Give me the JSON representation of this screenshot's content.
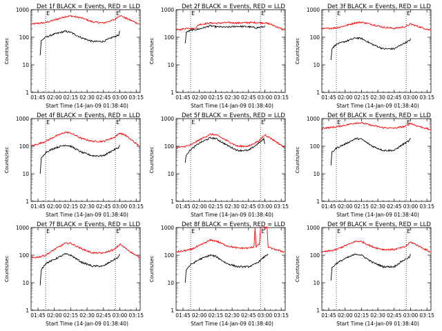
{
  "figure": {
    "start_time_label": "Start Time (14-Jan-09 01:38:40)",
    "ylabel": "Counts/sec",
    "x_ticks": [
      "01:45",
      "02:00",
      "02:15",
      "02:30",
      "02:45",
      "03:00",
      "03:15"
    ],
    "y_ticks": [
      "1",
      "10",
      "100",
      "1000"
    ],
    "marker_letters": [
      "E",
      "E"
    ],
    "colors": {
      "events": "#000000",
      "lld": "#ff0000",
      "axes": "#000000"
    }
  },
  "chart_data": [
    {
      "type": "line",
      "title": "Det 1f BLACK = Events, RED = LLD",
      "xlabel": "Start Time (14-Jan-09 01:38:40)",
      "ylabel": "Counts/sec",
      "xlim": [
        "01:38:40",
        "03:18:40"
      ],
      "ylim": [
        1,
        1000
      ],
      "yscale": "log",
      "marker_times": [
        "01:52",
        "02:56"
      ],
      "series": [
        {
          "name": "LLD",
          "color": "#ff0000",
          "x": [
            "01:38:40",
            "01:45",
            "01:52",
            "02:00",
            "02:10",
            "02:15",
            "02:25",
            "02:35",
            "02:45",
            "02:55",
            "03:00",
            "03:05",
            "03:18"
          ],
          "y": [
            300,
            320,
            340,
            420,
            560,
            590,
            500,
            360,
            330,
            430,
            620,
            500,
            300
          ]
        },
        {
          "name": "Events",
          "color": "#000000",
          "x": [
            "01:47",
            "01:48",
            "01:52",
            "02:00",
            "02:10",
            "02:15",
            "02:25",
            "02:35",
            "02:45",
            "02:52",
            "02:59",
            "03:00"
          ],
          "y": [
            22,
            75,
            100,
            130,
            165,
            150,
            95,
            70,
            70,
            95,
            120,
            170
          ]
        }
      ]
    },
    {
      "type": "line",
      "title": "Det 2f BLACK = Events, RED = LLD",
      "xlabel": "Start Time (14-Jan-09 01:38:40)",
      "ylabel": "Counts/sec",
      "xlim": [
        "01:38:40",
        "03:18:40"
      ],
      "ylim": [
        1,
        1000
      ],
      "yscale": "log",
      "marker_times": [
        "01:52",
        "02:56"
      ],
      "series": [
        {
          "name": "LLD",
          "color": "#ff0000",
          "x": [
            "01:38:40",
            "01:45",
            "01:50",
            "01:55",
            "02:00",
            "02:10",
            "02:15",
            "02:25",
            "02:35",
            "02:45",
            "02:55",
            "03:00",
            "03:05",
            "03:18"
          ],
          "y": [
            180,
            200,
            220,
            200,
            290,
            330,
            320,
            340,
            330,
            340,
            340,
            330,
            300,
            180
          ]
        },
        {
          "name": "Events",
          "color": "#000000",
          "x": [
            "01:47",
            "01:48",
            "01:52",
            "02:00",
            "02:10",
            "02:15",
            "02:25",
            "02:35",
            "02:45",
            "02:52",
            "02:59",
            "03:00"
          ],
          "y": [
            60,
            150,
            180,
            200,
            260,
            240,
            230,
            250,
            240,
            220,
            240,
            260
          ]
        }
      ]
    },
    {
      "type": "line",
      "title": "Det 3f BLACK = Events, RED = LLD",
      "xlabel": "Start Time (14-Jan-09 01:38:40)",
      "ylabel": "Counts/sec",
      "xlim": [
        "01:38:40",
        "03:18:40"
      ],
      "ylim": [
        1,
        1000
      ],
      "yscale": "log",
      "marker_times": [
        "01:52",
        "02:56"
      ],
      "series": [
        {
          "name": "LLD",
          "color": "#ff0000",
          "x": [
            "01:38:40",
            "01:45",
            "01:52",
            "02:00",
            "02:10",
            "02:15",
            "02:25",
            "02:35",
            "02:45",
            "02:55",
            "03:00",
            "03:05",
            "03:18"
          ],
          "y": [
            200,
            210,
            220,
            260,
            340,
            350,
            290,
            230,
            210,
            240,
            300,
            260,
            180
          ]
        },
        {
          "name": "Events",
          "color": "#000000",
          "x": [
            "01:47",
            "01:48",
            "01:52",
            "02:00",
            "02:10",
            "02:15",
            "02:25",
            "02:35",
            "02:45",
            "02:52",
            "02:59",
            "03:00"
          ],
          "y": [
            15,
            40,
            55,
            70,
            95,
            90,
            55,
            38,
            38,
            55,
            75,
            90
          ]
        }
      ]
    },
    {
      "type": "line",
      "title": "Det 4f BLACK = Events, RED = LLD",
      "xlabel": "Start Time (14-Jan-09 01:38:40)",
      "ylabel": "Counts/sec",
      "xlim": [
        "01:38:40",
        "03:18:40"
      ],
      "ylim": [
        1,
        1000
      ],
      "yscale": "log",
      "marker_times": [
        "01:52",
        "02:56"
      ],
      "series": [
        {
          "name": "LLD",
          "color": "#ff0000",
          "x": [
            "01:38:40",
            "01:45",
            "01:52",
            "02:00",
            "02:10",
            "02:15",
            "02:25",
            "02:35",
            "02:45",
            "02:55",
            "03:00",
            "03:05",
            "03:18"
          ],
          "y": [
            100,
            120,
            150,
            220,
            320,
            300,
            190,
            150,
            150,
            210,
            300,
            250,
            100
          ]
        },
        {
          "name": "Events",
          "color": "#000000",
          "x": [
            "01:47",
            "01:48",
            "01:52",
            "02:00",
            "02:10",
            "02:15",
            "02:25",
            "02:35",
            "02:45",
            "02:52",
            "02:59",
            "03:00"
          ],
          "y": [
            10,
            35,
            60,
            85,
            110,
            100,
            60,
            45,
            45,
            65,
            90,
            110
          ]
        }
      ]
    },
    {
      "type": "line",
      "title": "Det 5f BLACK = Events, RED = LLD",
      "xlabel": "Start Time (14-Jan-09 01:38:40)",
      "ylabel": "Counts/sec",
      "xlim": [
        "01:38:40",
        "03:18:40"
      ],
      "ylim": [
        1,
        1000
      ],
      "yscale": "log",
      "marker_times": [
        "01:52",
        "02:56"
      ],
      "series": [
        {
          "name": "LLD",
          "color": "#ff0000",
          "x": [
            "01:38:40",
            "01:45",
            "01:52",
            "02:00",
            "02:10",
            "02:15",
            "02:25",
            "02:35",
            "02:45",
            "02:55",
            "03:00",
            "03:05",
            "03:18"
          ],
          "y": [
            90,
            95,
            110,
            170,
            270,
            260,
            160,
            100,
            100,
            160,
            260,
            200,
            90
          ]
        },
        {
          "name": "Events",
          "color": "#000000",
          "x": [
            "01:47",
            "01:48",
            "01:52",
            "02:00",
            "02:10",
            "02:15",
            "02:25",
            "02:35",
            "02:45",
            "02:52",
            "02:59",
            "03:00"
          ],
          "y": [
            25,
            50,
            75,
            130,
            200,
            190,
            110,
            70,
            70,
            110,
            180,
            120
          ]
        }
      ]
    },
    {
      "type": "line",
      "title": "Det 6f BLACK = Events, RED = LLD",
      "xlabel": "Start Time (14-Jan-09 01:38:40)",
      "ylabel": "Counts/sec",
      "xlim": [
        "01:38:40",
        "03:18:40"
      ],
      "ylim": [
        1,
        1000
      ],
      "yscale": "log",
      "marker_times": [
        "01:52",
        "02:56"
      ],
      "series": [
        {
          "name": "LLD",
          "color": "#ff0000",
          "x": [
            "01:38:40",
            "01:45",
            "01:52",
            "02:00",
            "02:10",
            "02:15",
            "02:25",
            "02:35",
            "02:45",
            "02:55",
            "03:00",
            "03:05",
            "03:18"
          ],
          "y": [
            450,
            470,
            500,
            580,
            700,
            700,
            560,
            470,
            450,
            520,
            680,
            560,
            400
          ]
        },
        {
          "name": "Events",
          "color": "#000000",
          "x": [
            "01:47",
            "01:48",
            "01:52",
            "02:00",
            "02:10",
            "02:15",
            "02:25",
            "02:35",
            "02:45",
            "02:52",
            "02:59",
            "03:00"
          ],
          "y": [
            20,
            60,
            85,
            120,
            190,
            180,
            100,
            70,
            70,
            110,
            160,
            200
          ]
        }
      ]
    },
    {
      "type": "line",
      "title": "Det 7f BLACK = Events, RED = LLD",
      "xlabel": "Start Time (14-Jan-09 01:38:40)",
      "ylabel": "Counts/sec",
      "xlim": [
        "01:38:40",
        "03:18:40"
      ],
      "ylim": [
        1,
        1000
      ],
      "yscale": "log",
      "marker_times": [
        "01:52",
        "02:56"
      ],
      "series": [
        {
          "name": "LLD",
          "color": "#ff0000",
          "x": [
            "01:38:40",
            "01:45",
            "01:52",
            "02:00",
            "02:10",
            "02:15",
            "02:25",
            "02:35",
            "02:45",
            "02:55",
            "03:00",
            "03:05",
            "03:18"
          ],
          "y": [
            80,
            85,
            100,
            160,
            270,
            270,
            170,
            120,
            120,
            160,
            250,
            180,
            80
          ]
        },
        {
          "name": "Events",
          "color": "#000000",
          "x": [
            "01:47",
            "01:48",
            "01:52",
            "02:00",
            "02:10",
            "02:15",
            "02:25",
            "02:35",
            "02:45",
            "02:52",
            "02:59",
            "03:00"
          ],
          "y": [
            8,
            30,
            50,
            70,
            110,
            100,
            55,
            40,
            40,
            60,
            85,
            110
          ]
        }
      ]
    },
    {
      "type": "line",
      "title": "Det 8f BLACK = Events, RED = LLD",
      "xlabel": "Start Time (14-Jan-09 01:38:40)",
      "ylabel": "Counts/sec",
      "xlim": [
        "01:38:40",
        "03:18:40"
      ],
      "ylim": [
        1,
        1000
      ],
      "yscale": "log",
      "marker_times": [
        "01:52",
        "02:56"
      ],
      "series": [
        {
          "name": "LLD",
          "color": "#ff0000",
          "x": [
            "01:38:40",
            "01:45",
            "01:52",
            "02:00",
            "02:10",
            "02:15",
            "02:25",
            "02:35",
            "02:45",
            "02:50",
            "02:51",
            "02:52",
            "02:55",
            "02:56",
            "02:58",
            "03:02",
            "03:03",
            "03:05",
            "03:18"
          ],
          "y": [
            130,
            140,
            160,
            220,
            350,
            330,
            220,
            180,
            180,
            200,
            1000,
            200,
            250,
            1000,
            1000,
            1000,
            200,
            180,
            130
          ]
        },
        {
          "name": "Events",
          "color": "#000000",
          "x": [
            "01:47",
            "01:48",
            "01:52",
            "02:00",
            "02:10",
            "02:15",
            "02:25",
            "02:35",
            "02:45",
            "02:50",
            "02:55",
            "03:00",
            "03:03"
          ],
          "y": [
            10,
            30,
            45,
            70,
            100,
            90,
            50,
            38,
            38,
            45,
            60,
            90,
            110
          ]
        }
      ]
    },
    {
      "type": "line",
      "title": "Det 9f BLACK = Events, RED = LLD",
      "xlabel": "Start Time (14-Jan-09 01:38:40)",
      "ylabel": "Counts/sec",
      "xlim": [
        "01:38:40",
        "03:18:40"
      ],
      "ylim": [
        1,
        1000
      ],
      "yscale": "log",
      "marker_times": [
        "01:52",
        "02:56"
      ],
      "series": [
        {
          "name": "LLD",
          "color": "#ff0000",
          "x": [
            "01:38:40",
            "01:45",
            "01:52",
            "02:00",
            "02:10",
            "02:15",
            "02:25",
            "02:35",
            "02:45",
            "02:55",
            "03:00",
            "03:05",
            "03:18"
          ],
          "y": [
            130,
            140,
            160,
            220,
            320,
            310,
            200,
            160,
            160,
            200,
            300,
            240,
            130
          ]
        },
        {
          "name": "Events",
          "color": "#000000",
          "x": [
            "01:47",
            "01:48",
            "01:52",
            "02:00",
            "02:10",
            "02:15",
            "02:25",
            "02:35",
            "02:45",
            "02:52",
            "02:59",
            "03:00"
          ],
          "y": [
            12,
            35,
            50,
            75,
            110,
            100,
            55,
            38,
            38,
            60,
            85,
            110
          ]
        }
      ]
    }
  ]
}
